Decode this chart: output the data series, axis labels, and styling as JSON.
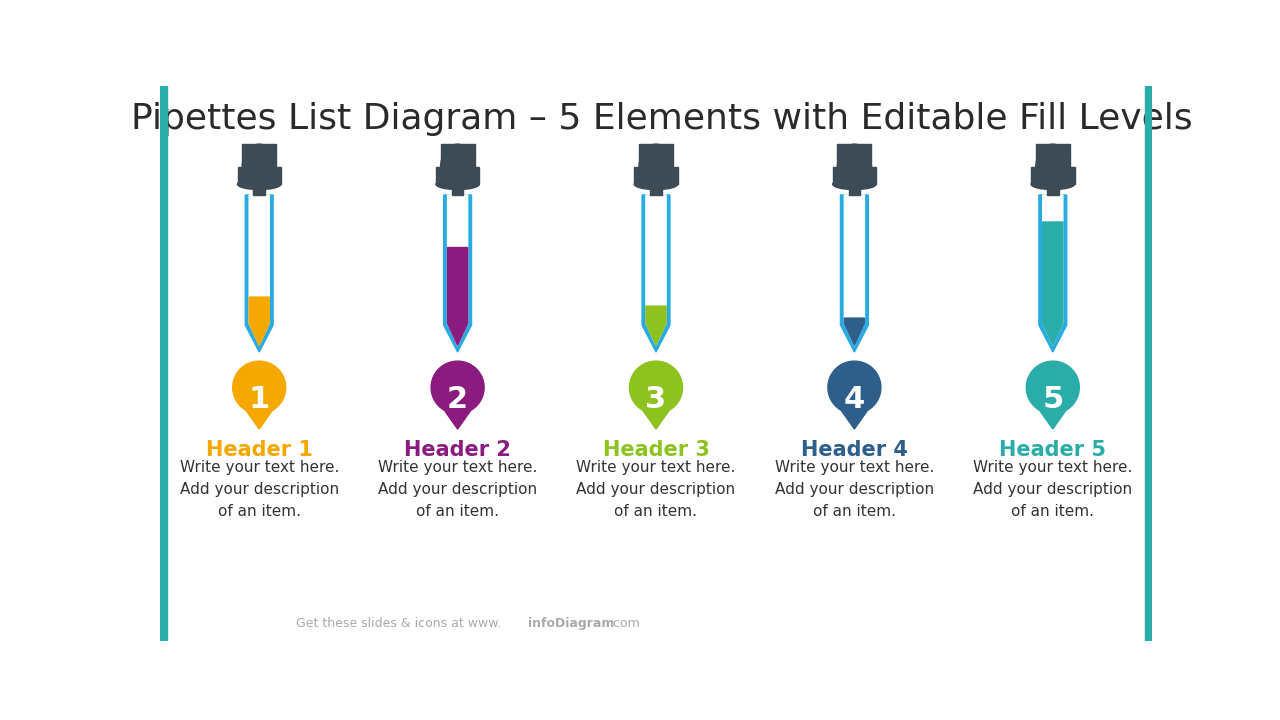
{
  "title": "Pipettes List Diagram – 5 Elements with Editable Fill Levels",
  "title_fontsize": 26,
  "title_color": "#2a2a2a",
  "background_color": "#ffffff",
  "accent_color": "#2AADA8",
  "footer_normal": "Get these slides & icons at www.",
  "footer_bold": "infoDiagram",
  "footer_suffix": ".com",
  "footer_color": "#aaaaaa",
  "elements": [
    {
      "number": "1",
      "color": "#F5A800",
      "fill_level": 0.32,
      "header": "Header 1",
      "body": "Write your text here.\nAdd your description\nof an item."
    },
    {
      "number": "2",
      "color": "#8B1B7F",
      "fill_level": 0.65,
      "header": "Header 2",
      "body": "Write your text here.\nAdd your description\nof an item."
    },
    {
      "number": "3",
      "color": "#8DC21F",
      "fill_level": 0.26,
      "header": "Header 3",
      "body": "Write your text here.\nAdd your description\nof an item."
    },
    {
      "number": "4",
      "color": "#2E5F8A",
      "fill_level": 0.18,
      "header": "Header 4",
      "body": "Write your text here.\nAdd your description\nof an item."
    },
    {
      "number": "5",
      "color": "#2AADA8",
      "fill_level": 0.82,
      "header": "Header 5",
      "body": "Write your text here.\nAdd your description\nof an item."
    }
  ],
  "outline_color": "#29ABE2",
  "bulb_color": "#3D4B57",
  "tube_bg": "#ffffff",
  "header_fontsize": 15,
  "body_fontsize": 11,
  "number_fontsize": 22
}
